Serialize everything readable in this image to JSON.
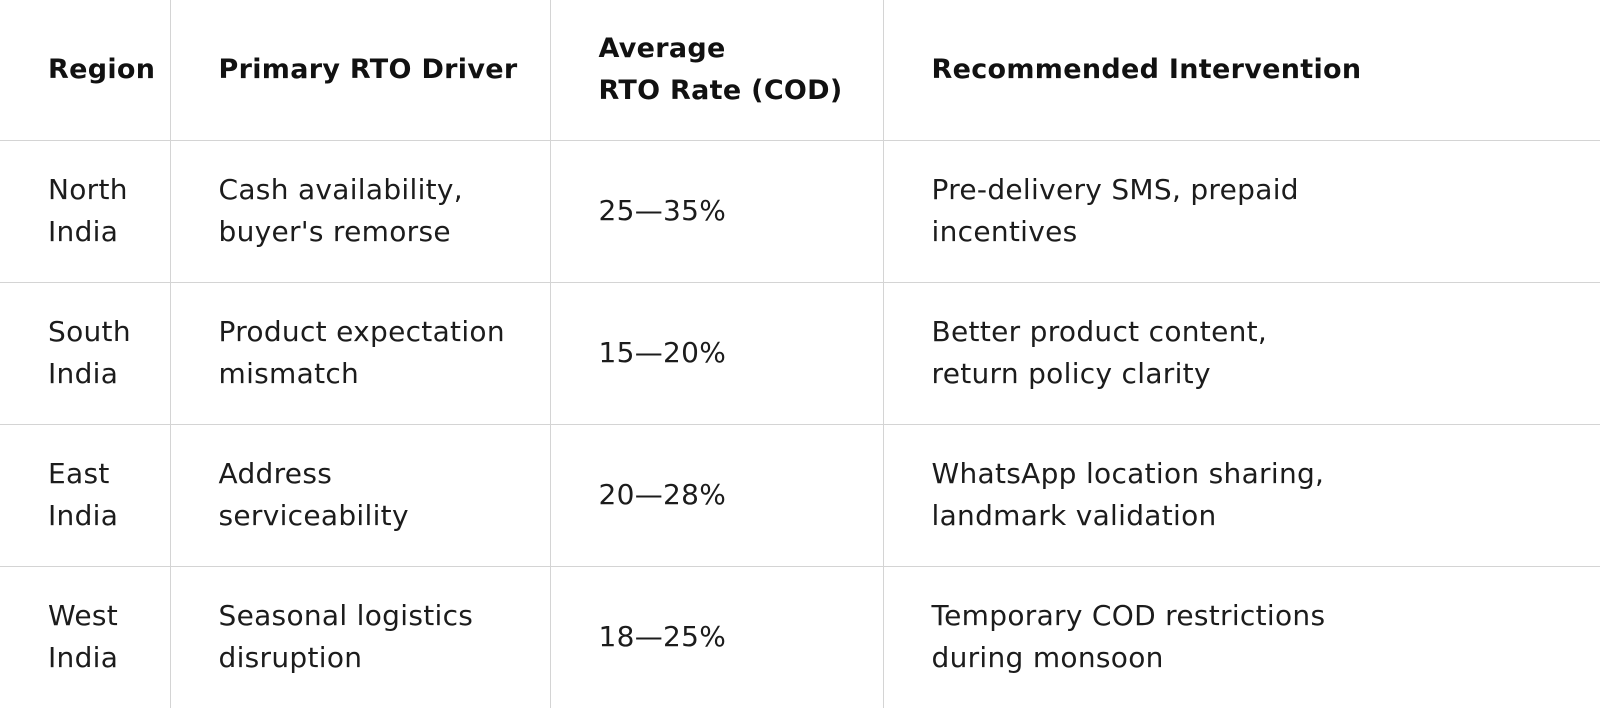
{
  "table": {
    "headers": [
      "Region",
      "Primary RTO Driver",
      "Average\nRTO Rate (COD)",
      "Recommended Intervention"
    ],
    "rows": [
      {
        "region": "North\nIndia",
        "driver": "Cash availability,\nbuyer's remorse",
        "rate": "25—35%",
        "intervention": "Pre-delivery SMS, prepaid\nincentives"
      },
      {
        "region": "South\nIndia",
        "driver": "Product expectation\nmismatch",
        "rate": "15—20%",
        "intervention": "Better product content,\nreturn policy clarity"
      },
      {
        "region": "East\nIndia",
        "driver": "Address\nserviceability",
        "rate": "20—28%",
        "intervention": "WhatsApp location sharing,\nlandmark validation"
      },
      {
        "region": "West\nIndia",
        "driver": "Seasonal logistics\ndisruption",
        "rate": "18—25%",
        "intervention": "Temporary COD restrictions\nduring monsoon"
      }
    ]
  }
}
